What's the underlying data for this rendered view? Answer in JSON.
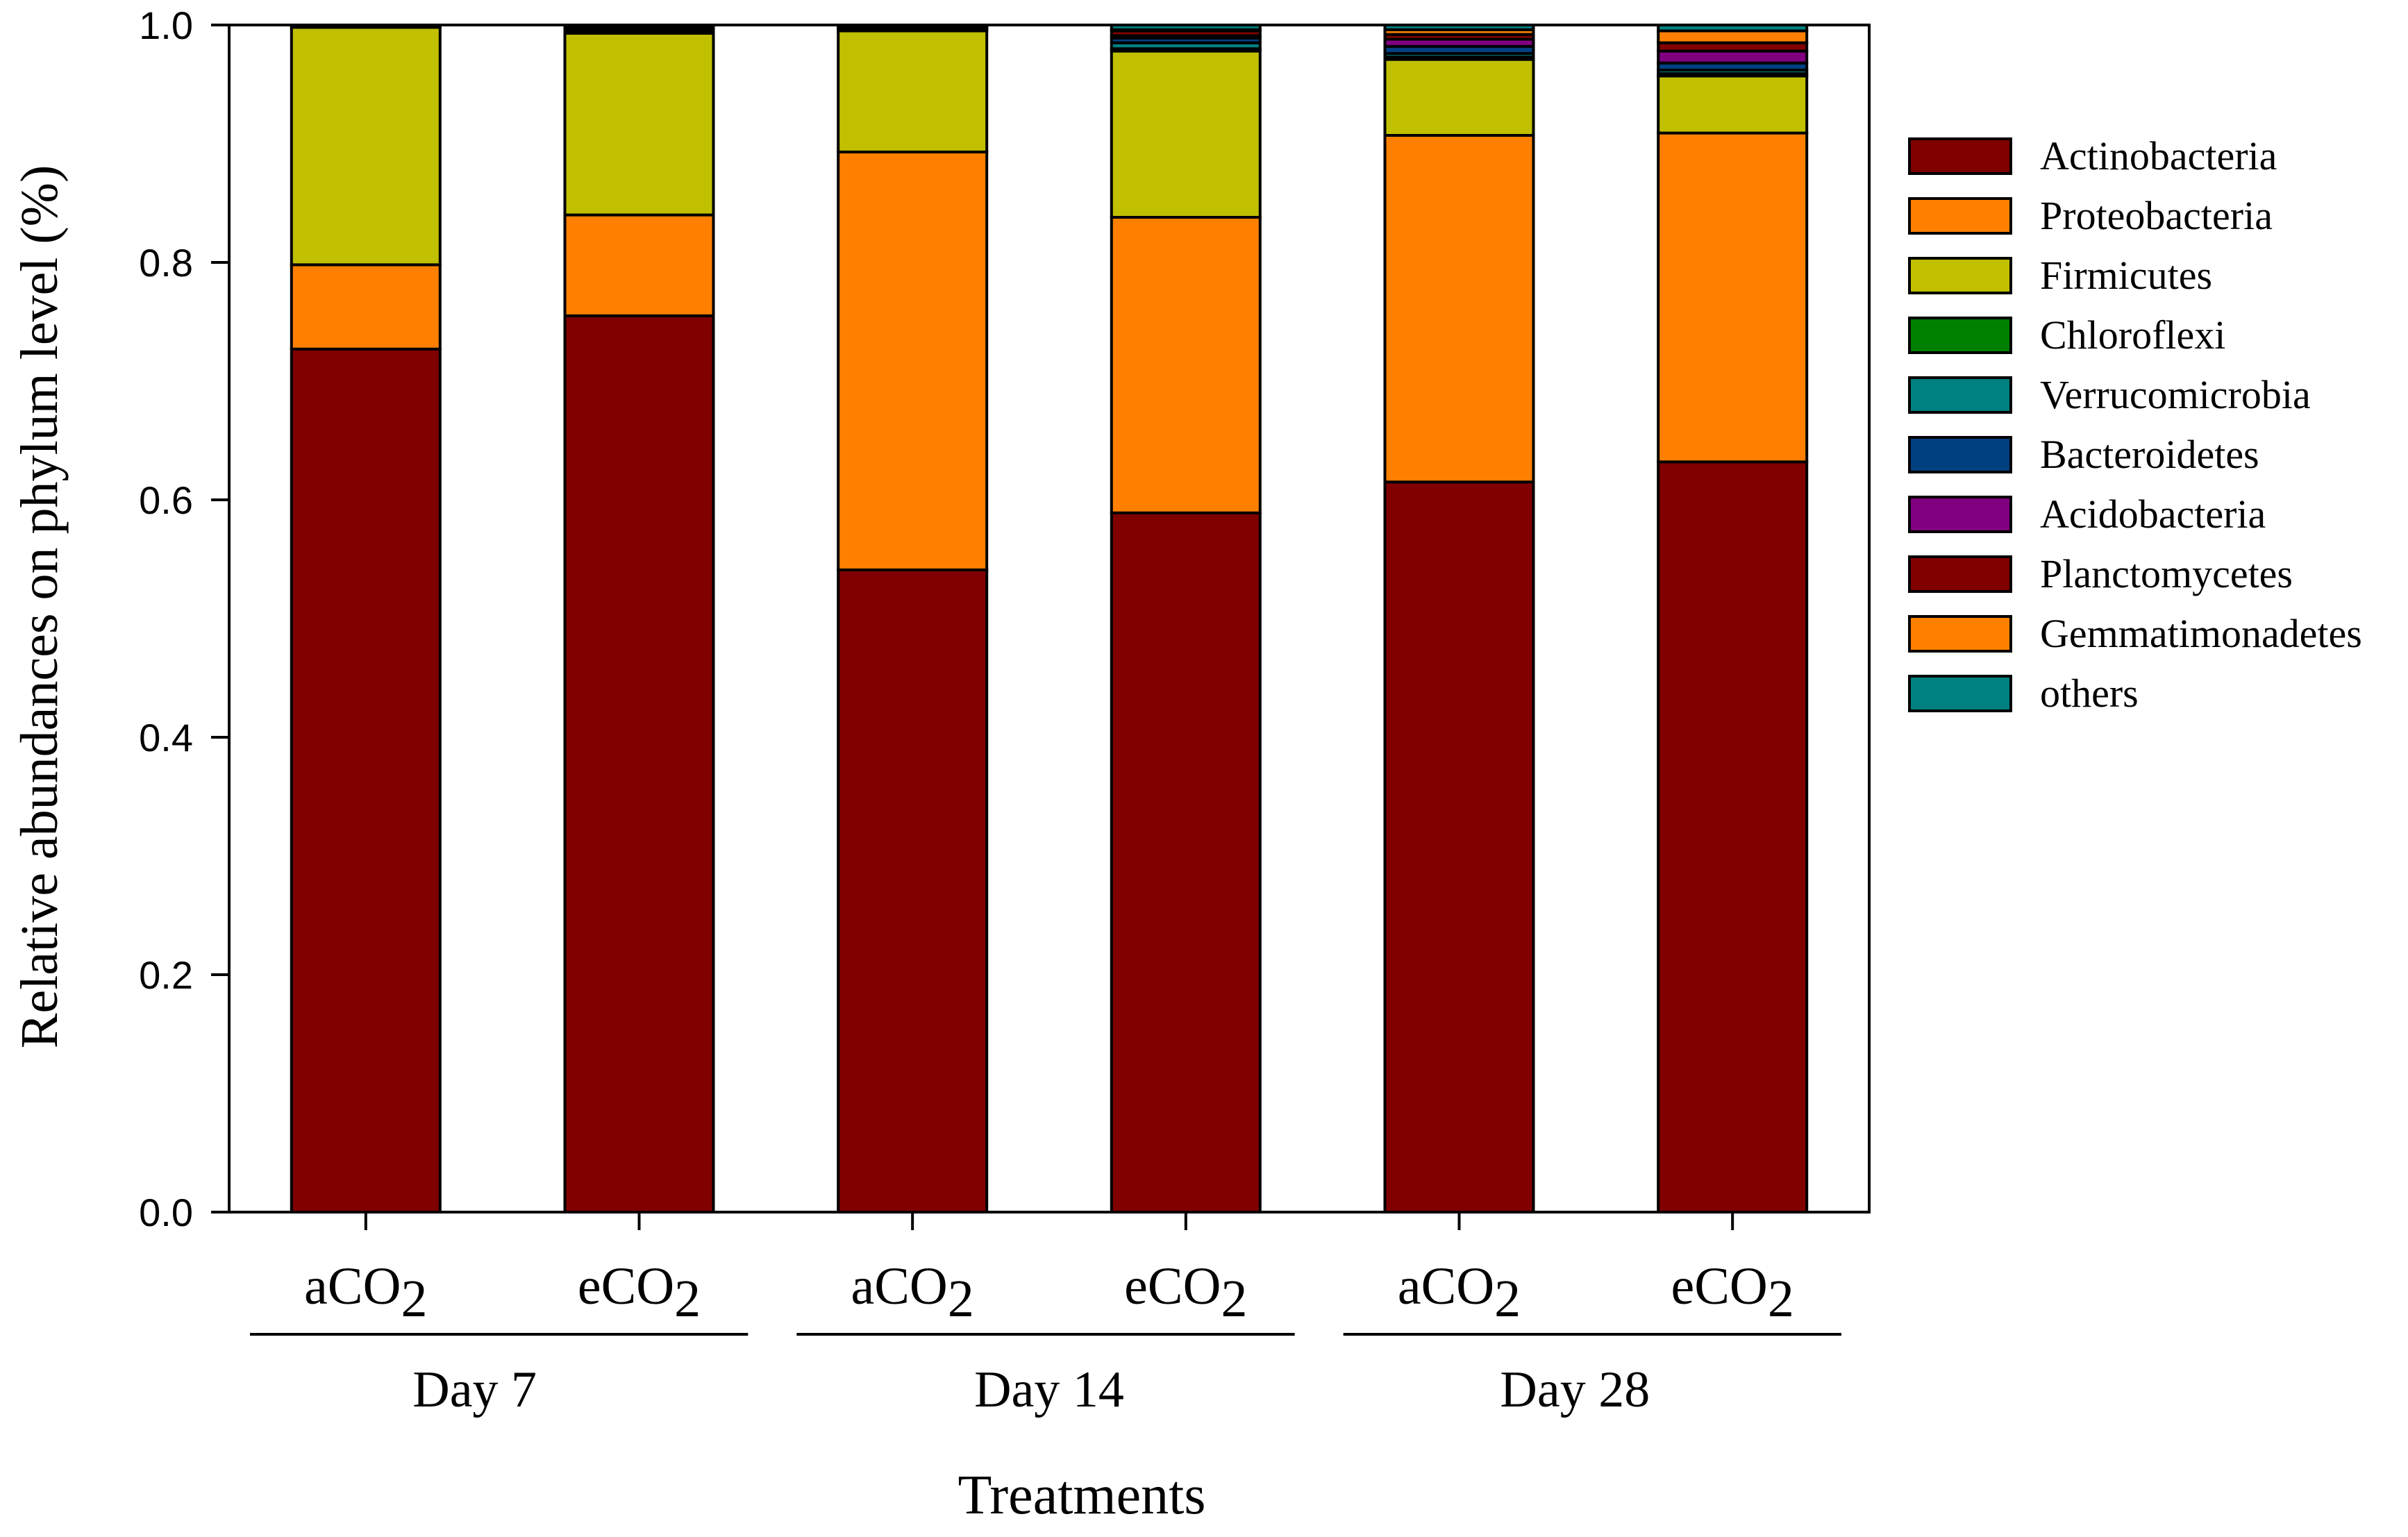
{
  "chart_data": {
    "type": "bar",
    "stacked": true,
    "ylabel": "Relative abundances on phylum level (%)",
    "xlabel": "Treatments",
    "ylim": [
      0,
      1.0
    ],
    "yticks": [
      "0.0",
      "0.2",
      "0.4",
      "0.6",
      "0.8",
      "1.0"
    ],
    "ytick_values": [
      0,
      0.2,
      0.4,
      0.6,
      0.8,
      1.0
    ],
    "categories": [
      {
        "prefix": "aCO",
        "sub": "2",
        "group": "Day 7"
      },
      {
        "prefix": "eCO",
        "sub": "2",
        "group": "Day 7"
      },
      {
        "prefix": "aCO",
        "sub": "2",
        "group": "Day 14"
      },
      {
        "prefix": "eCO",
        "sub": "2",
        "group": "Day 14"
      },
      {
        "prefix": "aCO",
        "sub": "2",
        "group": "Day 28"
      },
      {
        "prefix": "eCO",
        "sub": "2",
        "group": "Day 28"
      }
    ],
    "groups": [
      "Day 7",
      "Day 14",
      "Day 28"
    ],
    "legend_position": "right",
    "series": [
      {
        "name": "Actinobacteria",
        "color": "#800000",
        "values": [
          0.727,
          0.755,
          0.541,
          0.589,
          0.615,
          0.632
        ]
      },
      {
        "name": "Proteobacteria",
        "color": "#FF8000",
        "values": [
          0.071,
          0.085,
          0.352,
          0.249,
          0.292,
          0.277
        ]
      },
      {
        "name": "Firmicutes",
        "color": "#C0C000",
        "values": [
          0.2,
          0.153,
          0.102,
          0.14,
          0.064,
          0.048
        ]
      },
      {
        "name": "Chloroflexi",
        "color": "#008000",
        "values": [
          0.001,
          0.001,
          0.001,
          0.002,
          0.002,
          0.002
        ]
      },
      {
        "name": "Verrucomicrobia",
        "color": "#008080",
        "values": [
          0.0,
          0.001,
          0.001,
          0.005,
          0.003,
          0.003
        ]
      },
      {
        "name": "Bacteroidetes",
        "color": "#004080",
        "values": [
          0.0,
          0.001,
          0.001,
          0.004,
          0.006,
          0.006
        ]
      },
      {
        "name": "Acidobacteria",
        "color": "#800080",
        "values": [
          0.0,
          0.001,
          0.0,
          0.002,
          0.006,
          0.01
        ]
      },
      {
        "name": "Planctomycetes",
        "color": "#800000",
        "values": [
          0.0,
          0.002,
          0.001,
          0.004,
          0.004,
          0.007
        ]
      },
      {
        "name": "Gemmatimonadetes",
        "color": "#FF8000",
        "values": [
          0.0,
          0.0,
          0.0,
          0.001,
          0.004,
          0.01
        ]
      },
      {
        "name": "others",
        "color": "#008080",
        "values": [
          0.001,
          0.001,
          0.001,
          0.004,
          0.004,
          0.005
        ]
      }
    ]
  }
}
